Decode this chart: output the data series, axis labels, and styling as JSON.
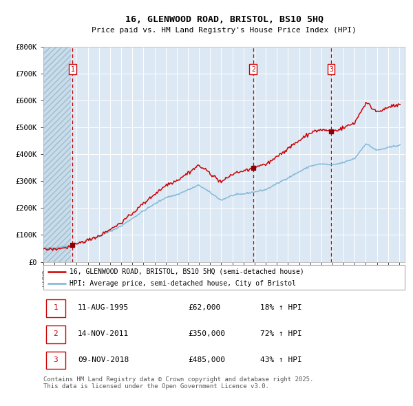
{
  "title_line1": "16, GLENWOOD ROAD, BRISTOL, BS10 5HQ",
  "title_line2": "Price paid vs. HM Land Registry's House Price Index (HPI)",
  "legend_entry1": "16, GLENWOOD ROAD, BRISTOL, BS10 5HQ (semi-detached house)",
  "legend_entry2": "HPI: Average price, semi-detached house, City of Bristol",
  "footnote": "Contains HM Land Registry data © Crown copyright and database right 2025.\nThis data is licensed under the Open Government Licence v3.0.",
  "transactions": [
    {
      "num": 1,
      "date": "11-AUG-1995",
      "price": 62000,
      "pct": "18% ↑ HPI",
      "year": 1995.62
    },
    {
      "num": 2,
      "date": "14-NOV-2011",
      "price": 350000,
      "pct": "72% ↑ HPI",
      "year": 2011.87
    },
    {
      "num": 3,
      "date": "09-NOV-2018",
      "price": 485000,
      "pct": "43% ↑ HPI",
      "year": 2018.87
    }
  ],
  "hpi_color": "#7ab3d4",
  "price_color": "#cc0000",
  "marker_color": "#8b0000",
  "dashed_line_color": "#cc0000",
  "bg_color": "#dce9f5",
  "hatch_color": "#b8cfe0",
  "ylim": [
    0,
    800000
  ],
  "xlim_start": 1993.0,
  "xlim_end": 2025.5,
  "yticks": [
    0,
    100000,
    200000,
    300000,
    400000,
    500000,
    600000,
    700000,
    800000
  ],
  "ytick_labels": [
    "£0",
    "£100K",
    "£200K",
    "£300K",
    "£400K",
    "£500K",
    "£600K",
    "£700K",
    "£800K"
  ]
}
